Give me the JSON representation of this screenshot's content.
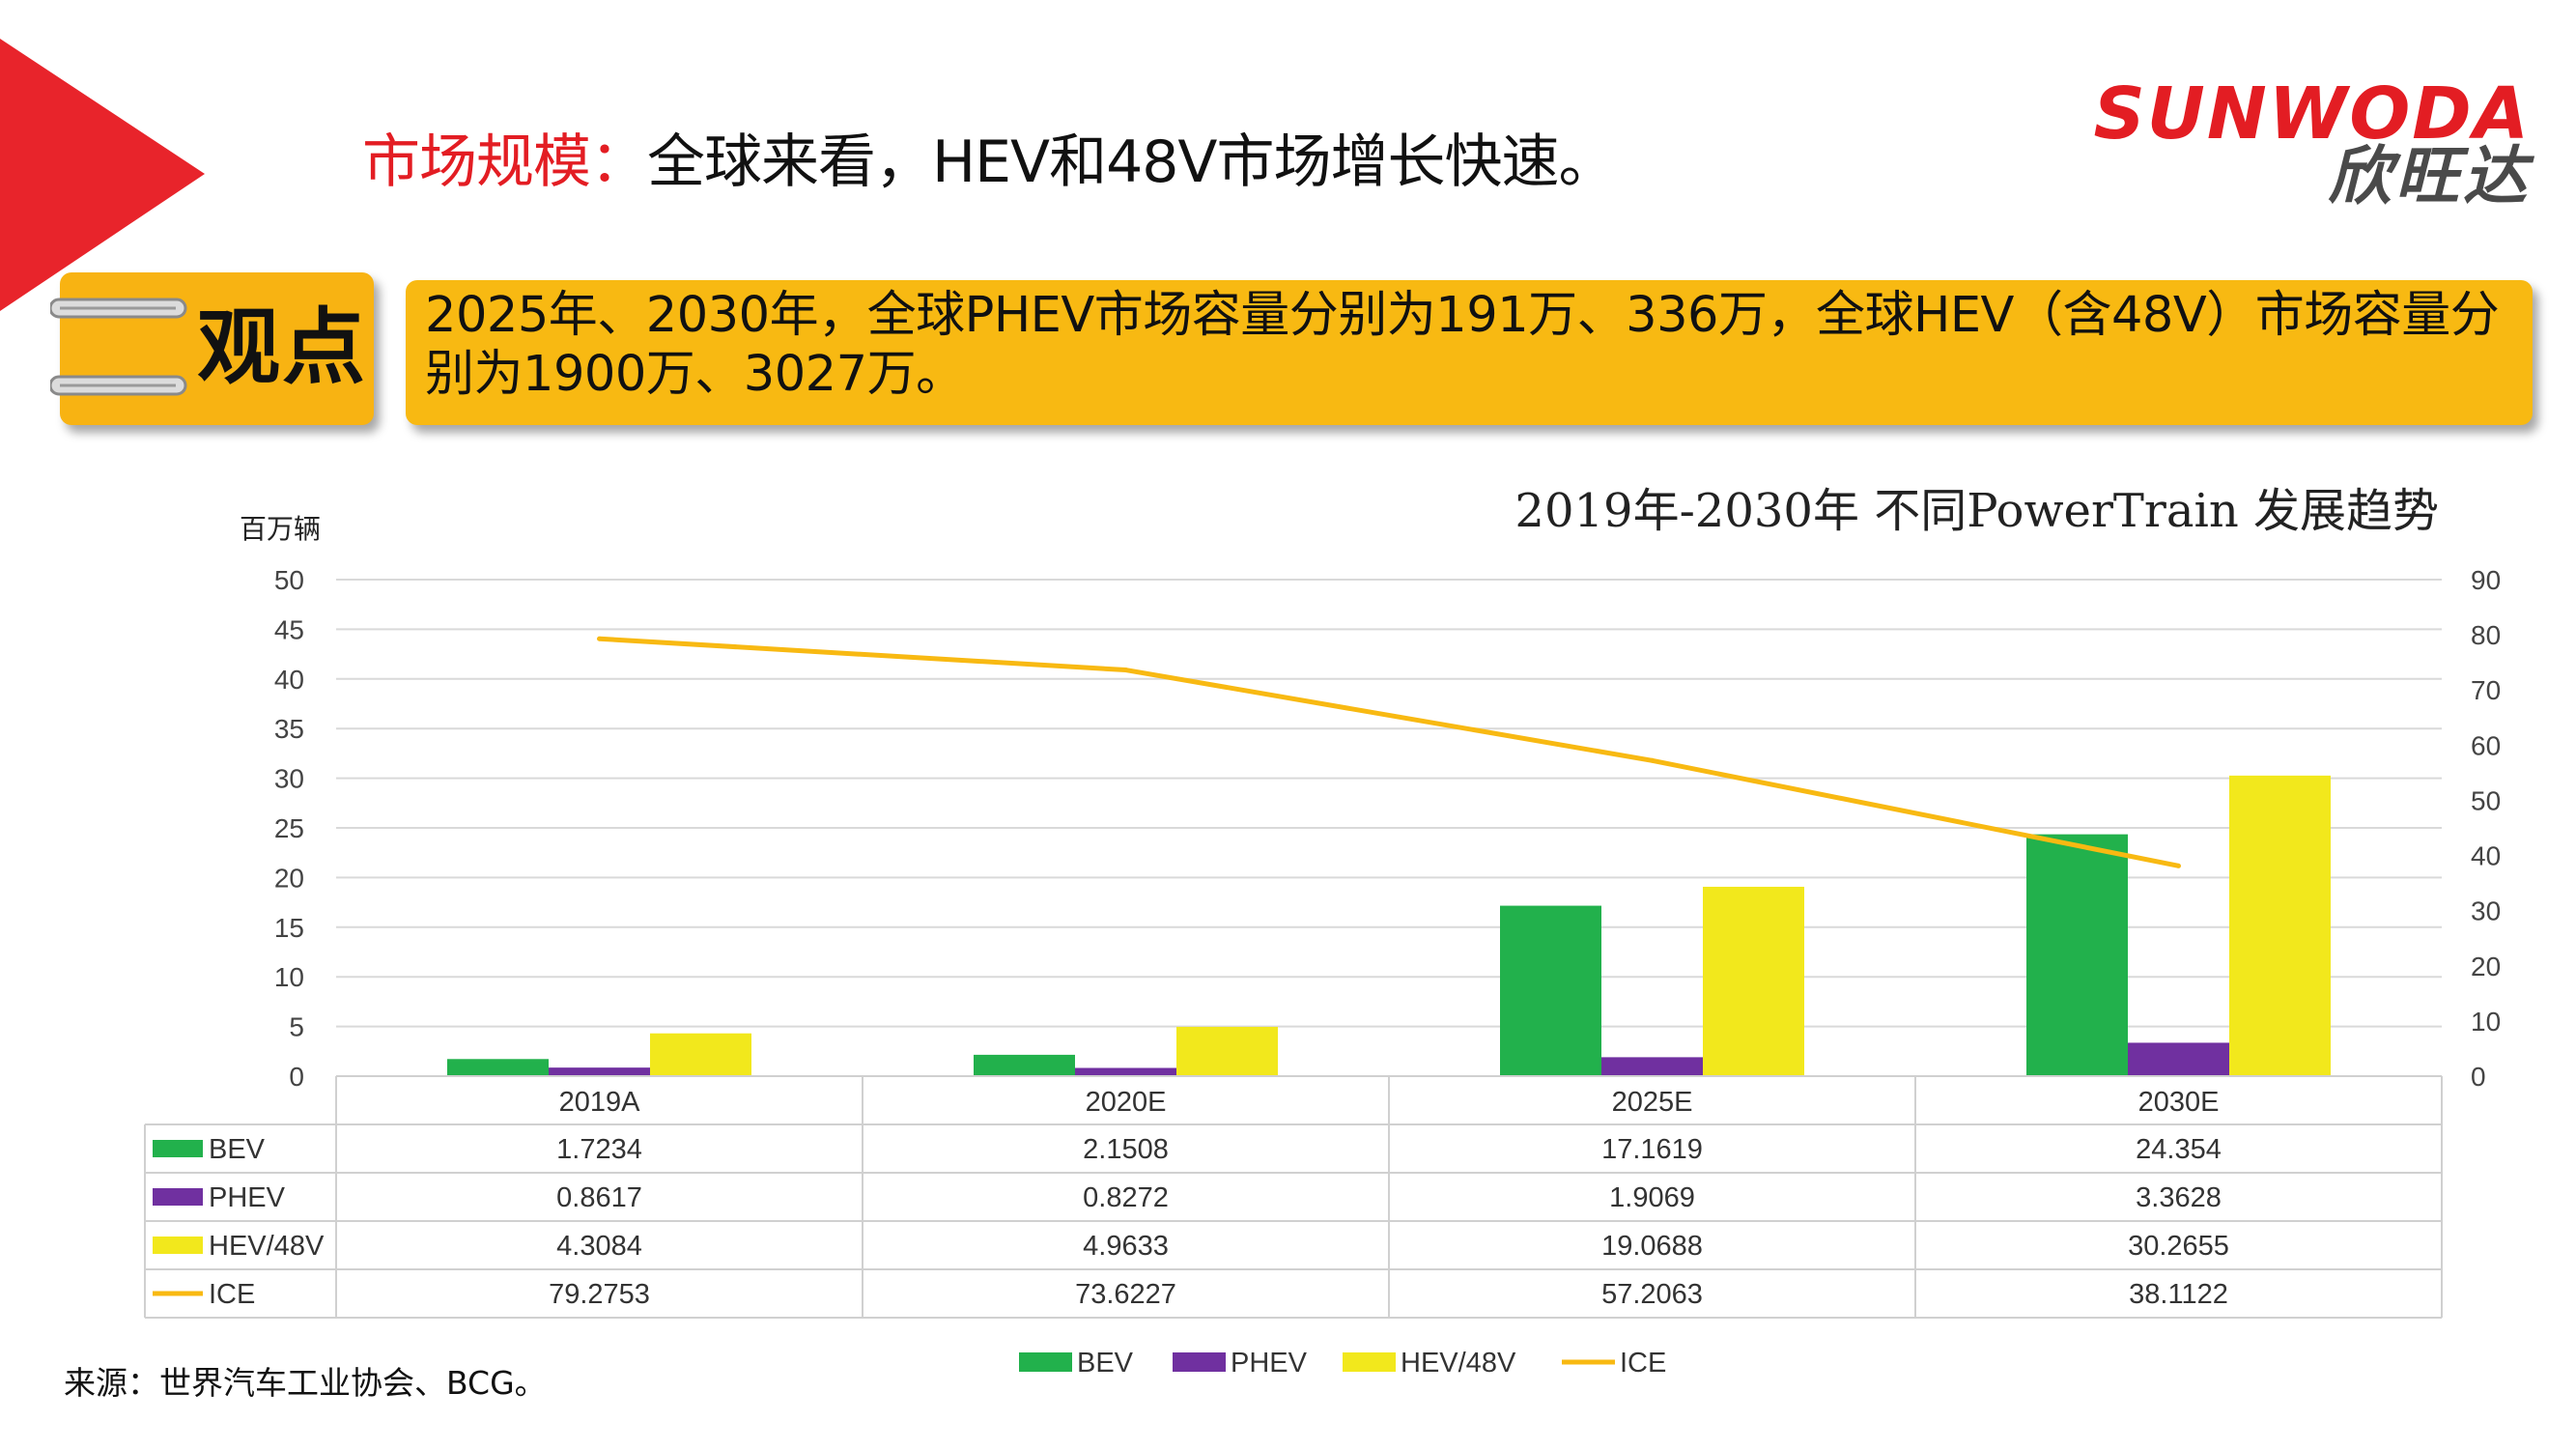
{
  "header": {
    "title_red": "市场规模：",
    "title_black": "全球来看，HEV和48V市场增长快速。"
  },
  "logo": {
    "en": "SUNWODA",
    "cn": "欣旺达"
  },
  "viewpoint": {
    "tag": "观点",
    "text": "2025年、2030年，全球PHEV市场容量分别为191万、336万，全球HEV（含48V）市场容量分别为1900万、3027万。"
  },
  "colors": {
    "accent_red": "#e31d23",
    "callout_yellow": "#f8b912"
  },
  "source": "来源：世界汽车工业协会、BCG。",
  "chart_data": {
    "type": "bar",
    "title": "2019年-2030年 不同PowerTrain 发展趋势",
    "ylabel": "百万辆",
    "categories": [
      "2019A",
      "2020E",
      "2025E",
      "2030E"
    ],
    "ylim": [
      0,
      50
    ],
    "y_ticks": [
      0,
      5,
      10,
      15,
      20,
      25,
      30,
      35,
      40,
      45,
      50
    ],
    "y2lim": [
      0,
      90
    ],
    "y2_ticks": [
      0,
      10,
      20,
      30,
      40,
      50,
      60,
      70,
      80,
      90
    ],
    "grid": true,
    "legend_position": "bottom",
    "series": [
      {
        "name": "BEV",
        "type": "bar",
        "axis": "left",
        "color": "#22b14c",
        "values": [
          1.7234,
          2.1508,
          17.1619,
          24.354
        ],
        "labels": [
          "1.7234",
          "2.1508",
          "17.1619",
          "24.354"
        ]
      },
      {
        "name": "PHEV",
        "type": "bar",
        "axis": "left",
        "color": "#7030a0",
        "values": [
          0.8617,
          0.8272,
          1.9069,
          3.3628
        ],
        "labels": [
          "0.8617",
          "0.8272",
          "1.9069",
          "3.3628"
        ]
      },
      {
        "name": "HEV/48V",
        "type": "bar",
        "axis": "left",
        "color": "#f2e81c",
        "values": [
          4.3084,
          4.9633,
          19.0688,
          30.2655
        ],
        "labels": [
          "4.3084",
          "4.9633",
          "19.0688",
          "30.2655"
        ]
      },
      {
        "name": "ICE",
        "type": "line",
        "axis": "right",
        "color": "#f8b912",
        "values": [
          79.2753,
          73.6227,
          57.2063,
          38.1122
        ],
        "labels": [
          "79.2753",
          "73.6227",
          "57.2063",
          "38.1122"
        ]
      }
    ]
  }
}
